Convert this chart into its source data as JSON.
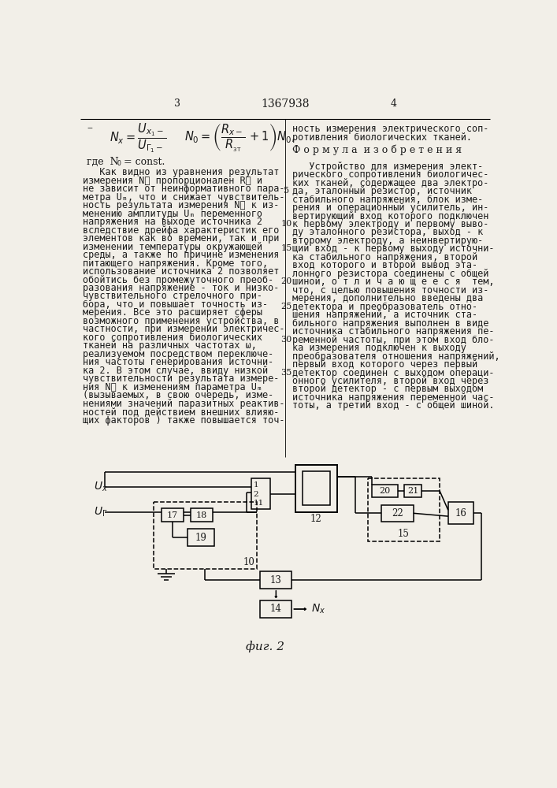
{
  "bg": "#f2efe8",
  "tc": "#1a1a1a",
  "page_num_left": "3",
  "patent_num": "1367938",
  "page_num_right": "4",
  "left_col": [
    "   Как видно из уравнения результат",
    "измерения Nᶋ пропорционален Rᶋ и",
    "не зависит от неинформативного пара-",
    "метра Uₘ, что и снижает чувствитель-",
    "ность результата измерения Nᶋ к из-",
    "менению амплитуды Uₘ переменного",
    "напряжения на выходе источника 2",
    "вследствие дрейфа характеристик его",
    "элементов как во времени, так и при",
    "изменении температуры окружающей",
    "среды, а также по причине изменения",
    "питающего напряжения. Кроме того,",
    "использование источника 2 позволяет",
    "обойтись без промежуточного преоб-",
    "разования напряжение - ток и низко-",
    "чувствительного стрелочного при-",
    "бора, что и повышает точность из-",
    "мерения. Все это расширяет сферы",
    "возможного применения устройства, в",
    "частности, при измерении электричес-",
    "кого сопротивления биологических",
    "тканей на различных частотах ω,",
    "реализуемом посредством переключе-",
    "ния частоты генерирования источни-",
    "ка 2. В этом случае, ввиду низкой",
    "чувствительности результата измере-",
    "ния Nᶋ к изменениям параметра Uₘ",
    "(вызываемых, в свою очередь, изме-",
    "нениями значений паразитных реактив-",
    "ностей под действием внешних влияю-",
    "щих факторов ) также повышается точ-"
  ],
  "right_top": [
    "ность измерения электрического соп-",
    "ротивления биологических тканей."
  ],
  "formula_title": "Ф о р м у л а  и з о б р е т е н и я",
  "right_col": [
    "   Устройство для измерения элект-",
    "рического сопротивления биологичес-",
    "ких тканей, содержащее два электро-",
    "да, эталонный резистор, источник",
    "стабильного напряжения, блок изме-",
    "рения и операционный усилитель, ин-",
    "вертирующий вход которого подключен",
    "к первому электроду и первому выво-",
    "ду эталонного резистора, выход - к",
    "второму электроду, а неинвертирую-",
    "щий вход - к первому выходу источни-",
    "ка стабильного напряжения, второй",
    "вход которого и второй вывод эта-",
    "лонного резистора соединены с общей",
    "шиной, о т л и ч а ю щ е е с я  тем,",
    "что, с целью повышения точности из-",
    "мерения, дополнительно введены два",
    "детектора и преобразователь отно-",
    "шения напряжений, а источник ста-",
    "бильного напряжения выполнен в виде",
    "источника стабильного напряжения пе-",
    "ременной частоты, при этом вход бло-",
    "ка измерения подключен к выходу",
    "преобразователя отношения напряжений,",
    "первый вход которого через первый",
    "детектор соединен с выходом операци-",
    "онного усилителя, второй вход через",
    "второй детектор - с первым выходом",
    "источника напряжения переменной час-",
    "тоты, а третий вход - с общей шиной."
  ],
  "line_numbers": [
    [
      5,
      3
    ],
    [
      10,
      5
    ],
    [
      15,
      7
    ],
    [
      20,
      10
    ],
    [
      25,
      13
    ],
    [
      30,
      16
    ],
    [
      35,
      18
    ]
  ],
  "fig_caption": "фиг. 2"
}
